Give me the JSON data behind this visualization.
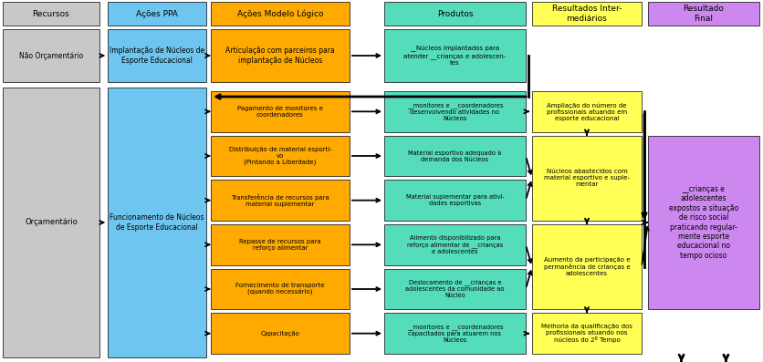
{
  "fig_width": 8.37,
  "fig_height": 3.97,
  "dpi": 100,
  "colors": {
    "gray": "#c8c8c8",
    "blue": "#6ec6f0",
    "orange": "#ffaa00",
    "cyan": "#55ddbb",
    "yellow": "#ffff55",
    "purple": "#cc88ee",
    "white": "#ffffff"
  },
  "headers": [
    "Recursos",
    "Ações PPA",
    "Ações Modelo Lógico",
    "Produtos",
    "Resultados Inter-\nmediários",
    "Resultado\nFinal"
  ],
  "header_colors": [
    "gray",
    "blue",
    "orange",
    "cyan",
    "yellow",
    "purple"
  ],
  "nao_orc_resource": "Não Orçamentário",
  "nao_orc_ppa": "Implantação de Núcleos de\nEsporte Educacional",
  "nao_orc_ml": "Articulação com parceiros para\nimplantação de Núcleos",
  "nao_orc_prod": "__Núcleos implantados para\natender __crianças e adolescen-\ntes",
  "orc_resource": "Orçamentário",
  "orc_ppa": "Funcionamento de Núcleos\nde Esporte Educacional",
  "orc_ml": [
    "Pagamento de monitores e\ncoordenadores",
    "Distribuição de material esporti-\nvo\n(Pintando a Liberdade)",
    "Transferência de recursos para\nmaterial suplementar",
    "Repasse de recursos para\nreforço alimentar",
    "Fornecimento de transporte\n(quando necessário)",
    "Capacitação"
  ],
  "orc_prod": [
    "__monitores e __coordenadores\ndesenvolvendo atividades no\nNúcleos",
    "Material esportivo adequado à\ndemanda dos Núcleos",
    "Material suplementar para ativi-\ndades esportivas",
    "Alimento disponibilizado para\nreforço alimentar de __crianças\ne adolescentes",
    "Deslocamento de __crianças e\nadolescentes da comunidade ao\nNúcleo",
    "__monitores e __coordenadores\ncapacitados para atuarem nos\nNúcleos"
  ],
  "orc_ri": [
    "Ampliação do número de\nprofissionais atuando em\nesporte educacional",
    "Núcleos abastecidos com\nmaterial esportivo e suple-\nmentar",
    "Aumento da participação e\npermanência de crianças e\nadolescentes",
    "Melhoria da qualificação dos\nprofissionais atuando nos\nnúcleos do 2º Tempo"
  ],
  "orc_ri_groups": [
    [
      0
    ],
    [
      1,
      2
    ],
    [
      3,
      4
    ],
    [
      5
    ]
  ],
  "resultado_final": "__crianças e\nadolescentes\nexpostos a situação\nde risco social\npraticando regular-\nmente esporte\neducacional no\ntempo ocioso"
}
